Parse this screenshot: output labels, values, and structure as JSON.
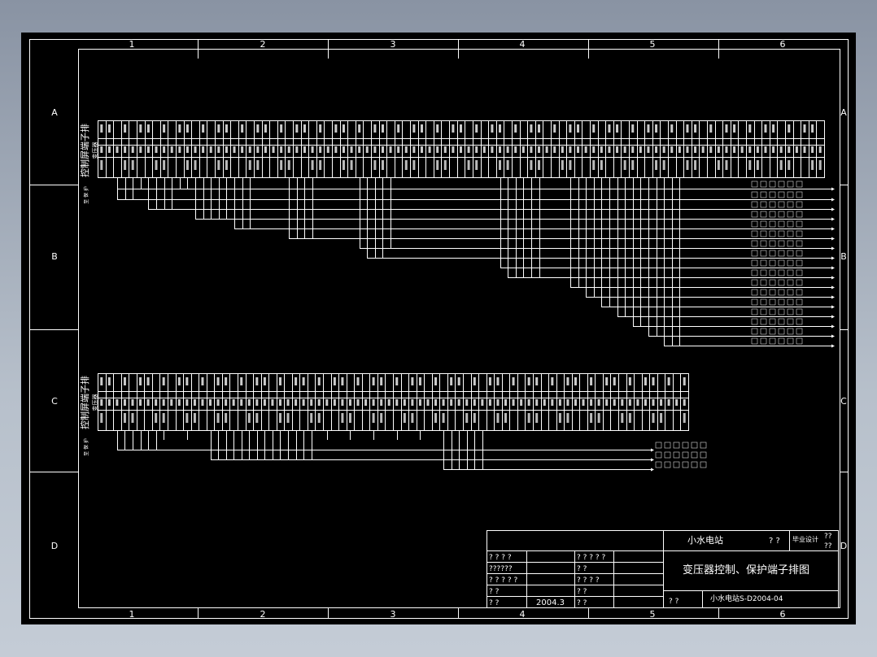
{
  "drawing": {
    "column_labels": [
      "1",
      "2",
      "3",
      "4",
      "5",
      "6"
    ],
    "row_labels": [
      "A",
      "B",
      "C",
      "D"
    ],
    "strip_top": {
      "title": "控制屏端子排",
      "subtitle": "变压器",
      "side_label": "至 保 护"
    },
    "strip_bottom": {
      "title": "控制屏端子排",
      "subtitle": "变压器",
      "side_label": "至 保 护"
    },
    "colors": {
      "background": "#000000",
      "lines": "#ffffff",
      "window": "#a4adb9"
    }
  },
  "title_block": {
    "project": "小水电站",
    "project_q": "? ?",
    "design_type": "毕业设计",
    "sheet_q1": "??",
    "sheet_q2": "??",
    "drawing_title": "变压器控制、保护端子排图",
    "left_rows": [
      {
        "a": "? ? ? ?",
        "b": "",
        "c": "? ? ? ? ?",
        "d": ""
      },
      {
        "a": "??????",
        "b": "",
        "c": "?        ?",
        "d": ""
      },
      {
        "a": "? ? ? ? ?",
        "b": "",
        "c": "? ? ? ?",
        "d": ""
      },
      {
        "a": "?        ?",
        "b": "",
        "c": "?        ?",
        "d": ""
      },
      {
        "a": "?        ?",
        "b": "2004.3",
        "c": "?        ?",
        "d": ""
      }
    ],
    "scale_q": "?     ?",
    "drawing_number": "小水电站S-D2004-04"
  }
}
